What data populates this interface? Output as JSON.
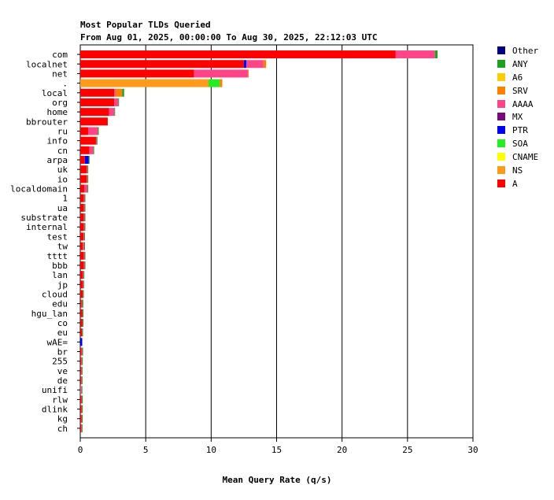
{
  "chart_data": {
    "type": "bar",
    "orientation": "horizontal",
    "stacked": true,
    "title": "Most Popular TLDs Queried",
    "subtitle": "From Aug 01, 2025, 00:00:00 To Aug 30, 2025, 22:12:03 UTC",
    "xlabel": "Mean Query Rate (q/s)",
    "ylabel": "",
    "xlim": [
      0,
      30
    ],
    "xticks": [
      "0",
      "5",
      "10",
      "15",
      "20",
      "25",
      "30"
    ],
    "grid": "vertical",
    "legend_position": "right",
    "categories": [
      "com",
      "localnet",
      "net",
      ".",
      "local",
      "org",
      "home",
      "bbrouter",
      "ru",
      "info",
      "cn",
      "arpa",
      "uk",
      "io",
      "localdomain",
      "1",
      "ua",
      "substrate",
      "internal",
      "test",
      "tw",
      "tttt",
      "bbb",
      "lan",
      "jp",
      "cloud",
      "edu",
      "hgu_lan",
      "co",
      "eu",
      "wAE=",
      "br",
      "255",
      "ve",
      "de",
      "unifi",
      "rlw",
      "dlink",
      "kg",
      "ch"
    ],
    "series": [
      {
        "name": "A",
        "color": "#ff0000",
        "values": [
          24.1,
          12.5,
          8.7,
          0,
          2.6,
          2.6,
          2.2,
          2.1,
          0.6,
          1.2,
          0.7,
          0.35,
          0.5,
          0.5,
          0.3,
          0.28,
          0.28,
          0.28,
          0.28,
          0.25,
          0.2,
          0.28,
          0.28,
          0.2,
          0.18,
          0.18,
          0.1,
          0.15,
          0.15,
          0.12,
          0,
          0.1,
          0.08,
          0.08,
          0.08,
          0,
          0.1,
          0.1,
          0.1,
          0.08
        ]
      },
      {
        "name": "NS",
        "color": "#ff9a1a",
        "values": [
          0,
          0,
          0,
          9.8,
          0,
          0,
          0,
          0,
          0,
          0,
          0,
          0,
          0,
          0,
          0,
          0,
          0,
          0,
          0,
          0,
          0,
          0,
          0,
          0,
          0,
          0,
          0,
          0,
          0,
          0,
          0,
          0,
          0,
          0,
          0,
          0,
          0,
          0,
          0,
          0
        ]
      },
      {
        "name": "CNAME",
        "color": "#ffff00",
        "values": [
          0,
          0,
          0,
          0,
          0,
          0,
          0,
          0,
          0,
          0,
          0,
          0,
          0,
          0,
          0,
          0,
          0,
          0,
          0,
          0,
          0,
          0,
          0,
          0,
          0,
          0,
          0,
          0,
          0,
          0,
          0,
          0,
          0,
          0,
          0,
          0,
          0,
          0,
          0,
          0
        ]
      },
      {
        "name": "SOA",
        "color": "#22ee22",
        "values": [
          0,
          0,
          0,
          0.85,
          0,
          0,
          0,
          0,
          0,
          0,
          0,
          0,
          0,
          0,
          0,
          0,
          0,
          0,
          0,
          0,
          0,
          0,
          0,
          0,
          0,
          0,
          0,
          0,
          0,
          0,
          0,
          0,
          0,
          0,
          0,
          0,
          0,
          0,
          0,
          0
        ]
      },
      {
        "name": "PTR",
        "color": "#0000ee",
        "values": [
          0,
          0.2,
          0,
          0,
          0,
          0,
          0,
          0,
          0,
          0,
          0,
          0.3,
          0,
          0,
          0,
          0,
          0,
          0,
          0,
          0,
          0,
          0,
          0,
          0,
          0,
          0,
          0,
          0,
          0,
          0,
          0.15,
          0,
          0,
          0,
          0,
          0,
          0,
          0,
          0,
          0
        ]
      },
      {
        "name": "MX",
        "color": "#7a0a7a",
        "values": [
          0,
          0,
          0,
          0,
          0,
          0,
          0,
          0,
          0,
          0,
          0,
          0,
          0,
          0,
          0,
          0,
          0,
          0,
          0,
          0,
          0,
          0,
          0,
          0,
          0,
          0,
          0,
          0,
          0,
          0,
          0,
          0,
          0,
          0,
          0,
          0,
          0,
          0,
          0,
          0
        ]
      },
      {
        "name": "AAAA",
        "color": "#ff4488",
        "values": [
          3.0,
          1.3,
          4.1,
          0,
          0.1,
          0.3,
          0.4,
          0,
          0.75,
          0.05,
          0.3,
          0,
          0.05,
          0.05,
          0.25,
          0.05,
          0.05,
          0.05,
          0.05,
          0.05,
          0.1,
          0.05,
          0.05,
          0.05,
          0.05,
          0.03,
          0.05,
          0.03,
          0.03,
          0.03,
          0,
          0.05,
          0.05,
          0.03,
          0.03,
          0.1,
          0.03,
          0.03,
          0.02,
          0.03
        ]
      },
      {
        "name": "SRV",
        "color": "#ff7f00",
        "values": [
          0,
          0.2,
          0.05,
          0.2,
          0.5,
          0,
          0,
          0,
          0,
          0,
          0,
          0,
          0,
          0,
          0,
          0,
          0,
          0,
          0,
          0,
          0,
          0,
          0,
          0,
          0,
          0,
          0,
          0,
          0,
          0,
          0,
          0,
          0,
          0,
          0,
          0,
          0,
          0,
          0,
          0
        ]
      },
      {
        "name": "A6",
        "color": "#ffcc00",
        "values": [
          0,
          0,
          0,
          0,
          0,
          0,
          0,
          0,
          0,
          0,
          0,
          0,
          0,
          0,
          0,
          0,
          0,
          0,
          0,
          0,
          0,
          0,
          0,
          0,
          0,
          0,
          0,
          0,
          0,
          0,
          0,
          0,
          0,
          0,
          0,
          0,
          0,
          0,
          0,
          0
        ]
      },
      {
        "name": "ANY",
        "color": "#1fa01f",
        "values": [
          0.2,
          0,
          0,
          0,
          0.15,
          0.05,
          0.05,
          0,
          0.02,
          0.02,
          0.02,
          0.02,
          0.05,
          0.05,
          0.02,
          0.02,
          0.02,
          0.02,
          0.02,
          0.02,
          0.02,
          0.02,
          0.02,
          0.05,
          0.02,
          0.02,
          0.08,
          0.02,
          0.02,
          0.02,
          0,
          0.02,
          0.02,
          0.02,
          0.02,
          0.02,
          0.02,
          0.02,
          0.02,
          0.02
        ]
      },
      {
        "name": "Other",
        "color": "#000080",
        "values": [
          0,
          0,
          0,
          0,
          0,
          0,
          0,
          0,
          0,
          0,
          0,
          0,
          0,
          0,
          0,
          0,
          0,
          0,
          0,
          0,
          0,
          0,
          0,
          0,
          0,
          0,
          0,
          0,
          0,
          0,
          0,
          0,
          0,
          0,
          0,
          0,
          0,
          0,
          0,
          0
        ]
      }
    ],
    "legend_order": [
      "Other",
      "ANY",
      "A6",
      "SRV",
      "AAAA",
      "MX",
      "PTR",
      "SOA",
      "CNAME",
      "NS",
      "A"
    ]
  }
}
